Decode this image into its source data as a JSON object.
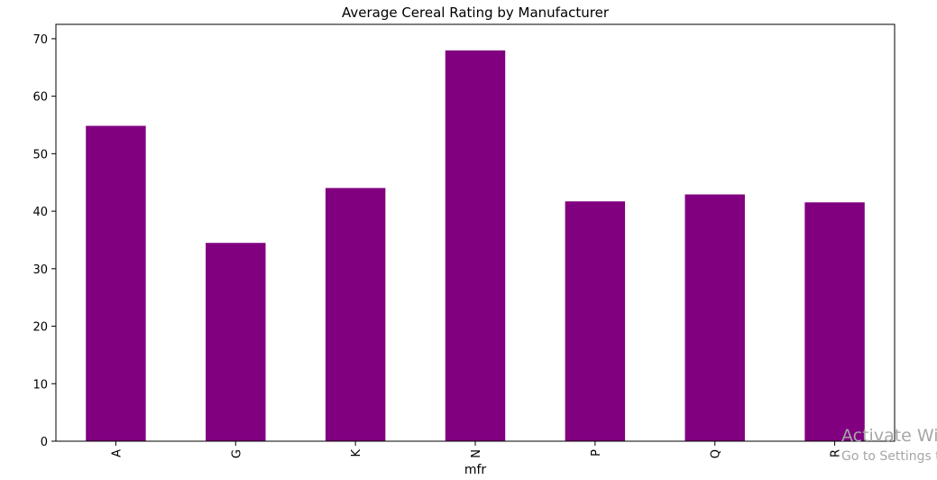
{
  "chart_data": {
    "type": "bar",
    "title": "Average Cereal Rating by Manufacturer",
    "xlabel": "mfr",
    "ylabel": "",
    "categories": [
      "A",
      "G",
      "K",
      "N",
      "P",
      "Q",
      "R"
    ],
    "values": [
      54.85,
      34.49,
      44.04,
      67.97,
      41.71,
      42.92,
      41.54
    ],
    "ylim": [
      0,
      72.5
    ],
    "yticks": [
      0,
      10,
      20,
      30,
      40,
      50,
      60,
      70
    ],
    "bar_color": "#800080",
    "grid": false,
    "legend": "none"
  },
  "watermark": {
    "line1": "Activate Wir",
    "line2": "Go to Settings to"
  }
}
